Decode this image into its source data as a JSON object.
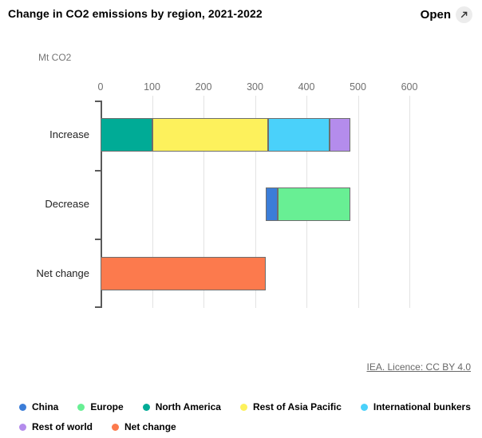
{
  "header": {
    "title": "Change in CO2 emissions by region, 2021-2022",
    "open_label": "Open"
  },
  "footer": {
    "licence": "IEA. Licence: CC BY 4.0"
  },
  "chart_data": {
    "type": "bar",
    "subtype": "horizontal-stacked-waterfall",
    "title": "Change in CO2 emissions by region, 2021-2022",
    "unit_label": "Mt CO2",
    "xlabel": "Mt CO2",
    "ylabel": "",
    "x_axis": {
      "min": 0,
      "max": 600,
      "tick_interval": 100,
      "ticks": [
        0,
        100,
        200,
        300,
        400,
        500,
        600
      ]
    },
    "grid": true,
    "legend_position": "bottom",
    "categories": [
      "Increase",
      "Decrease",
      "Net change"
    ],
    "rows": [
      {
        "category": "Increase",
        "start": 0,
        "segments": [
          {
            "series": "North America",
            "value": 100
          },
          {
            "series": "Rest of Asia Pacific",
            "value": 225
          },
          {
            "series": "International bunkers",
            "value": 120
          },
          {
            "series": "Rest of world",
            "value": 40
          }
        ]
      },
      {
        "category": "Decrease",
        "start": 321,
        "segments": [
          {
            "series": "China",
            "value": 23
          },
          {
            "series": "Europe",
            "value": 141
          }
        ]
      },
      {
        "category": "Net change",
        "start": 0,
        "segments": [
          {
            "series": "Net change",
            "value": 321
          }
        ]
      }
    ],
    "legend": [
      {
        "label": "China",
        "color": "#3b7dd8"
      },
      {
        "label": "Europe",
        "color": "#68ef94"
      },
      {
        "label": "North America",
        "color": "#00ab96"
      },
      {
        "label": "Rest of Asia Pacific",
        "color": "#fdf15c"
      },
      {
        "label": "International bunkers",
        "color": "#4ad1fa"
      },
      {
        "label": "Rest of world",
        "color": "#b48cec"
      },
      {
        "label": "Net change",
        "color": "#fc7a4d"
      }
    ]
  }
}
